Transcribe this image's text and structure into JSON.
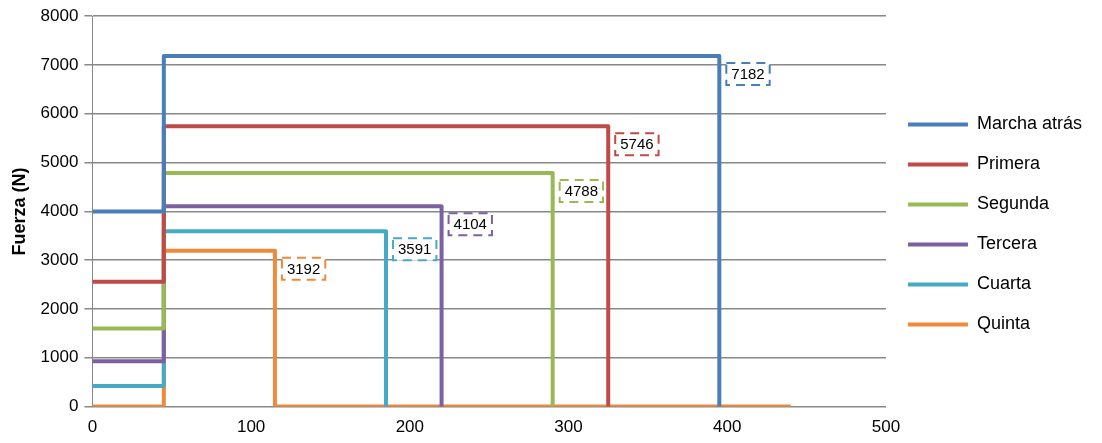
{
  "chart_data": {
    "type": "line",
    "ylabel": "Fuerza (N)",
    "xlim": [
      0,
      500
    ],
    "xticks": [
      0,
      100,
      200,
      300,
      400,
      500
    ],
    "ylim": [
      0,
      8000
    ],
    "yticks": [
      0,
      1000,
      2000,
      3000,
      4000,
      5000,
      6000,
      7000,
      8000
    ],
    "grid": "y",
    "legend": "right",
    "marker": "none",
    "line_style": "solid",
    "series": [
      {
        "name": "Marcha atrás",
        "color": "#4a7ebb",
        "x": [
          0,
          45,
          45,
          395,
          395
        ],
        "values": [
          4000,
          4000,
          7182,
          7182,
          0
        ],
        "value_labels": [
          null,
          null,
          null,
          "7182",
          null
        ]
      },
      {
        "name": "Primera",
        "color": "#be4b48",
        "x": [
          0,
          45,
          45,
          325,
          325
        ],
        "values": [
          2560,
          2560,
          5746,
          5746,
          0
        ],
        "value_labels": [
          null,
          null,
          null,
          "5746",
          null
        ]
      },
      {
        "name": "Segunda",
        "color": "#98b954",
        "x": [
          0,
          45,
          45,
          290,
          290
        ],
        "values": [
          1600,
          1600,
          4788,
          4788,
          0
        ],
        "value_labels": [
          null,
          null,
          null,
          "4788",
          null
        ]
      },
      {
        "name": "Tercera",
        "color": "#7d60a0",
        "x": [
          0,
          45,
          45,
          220,
          220
        ],
        "values": [
          930,
          930,
          4104,
          4104,
          0
        ],
        "value_labels": [
          null,
          null,
          null,
          "4104",
          null
        ]
      },
      {
        "name": "Cuarta",
        "color": "#46aac5",
        "x": [
          0,
          45,
          45,
          185,
          185
        ],
        "values": [
          420,
          420,
          3591,
          3591,
          0
        ],
        "value_labels": [
          null,
          null,
          null,
          "3591",
          null
        ]
      },
      {
        "name": "Quinta",
        "color": "#f08a3a",
        "x": [
          0,
          45,
          45,
          115,
          115,
          440
        ],
        "values": [
          0,
          0,
          3192,
          3192,
          0,
          0
        ],
        "value_labels": [
          null,
          null,
          null,
          "3192",
          null,
          null
        ]
      }
    ]
  }
}
